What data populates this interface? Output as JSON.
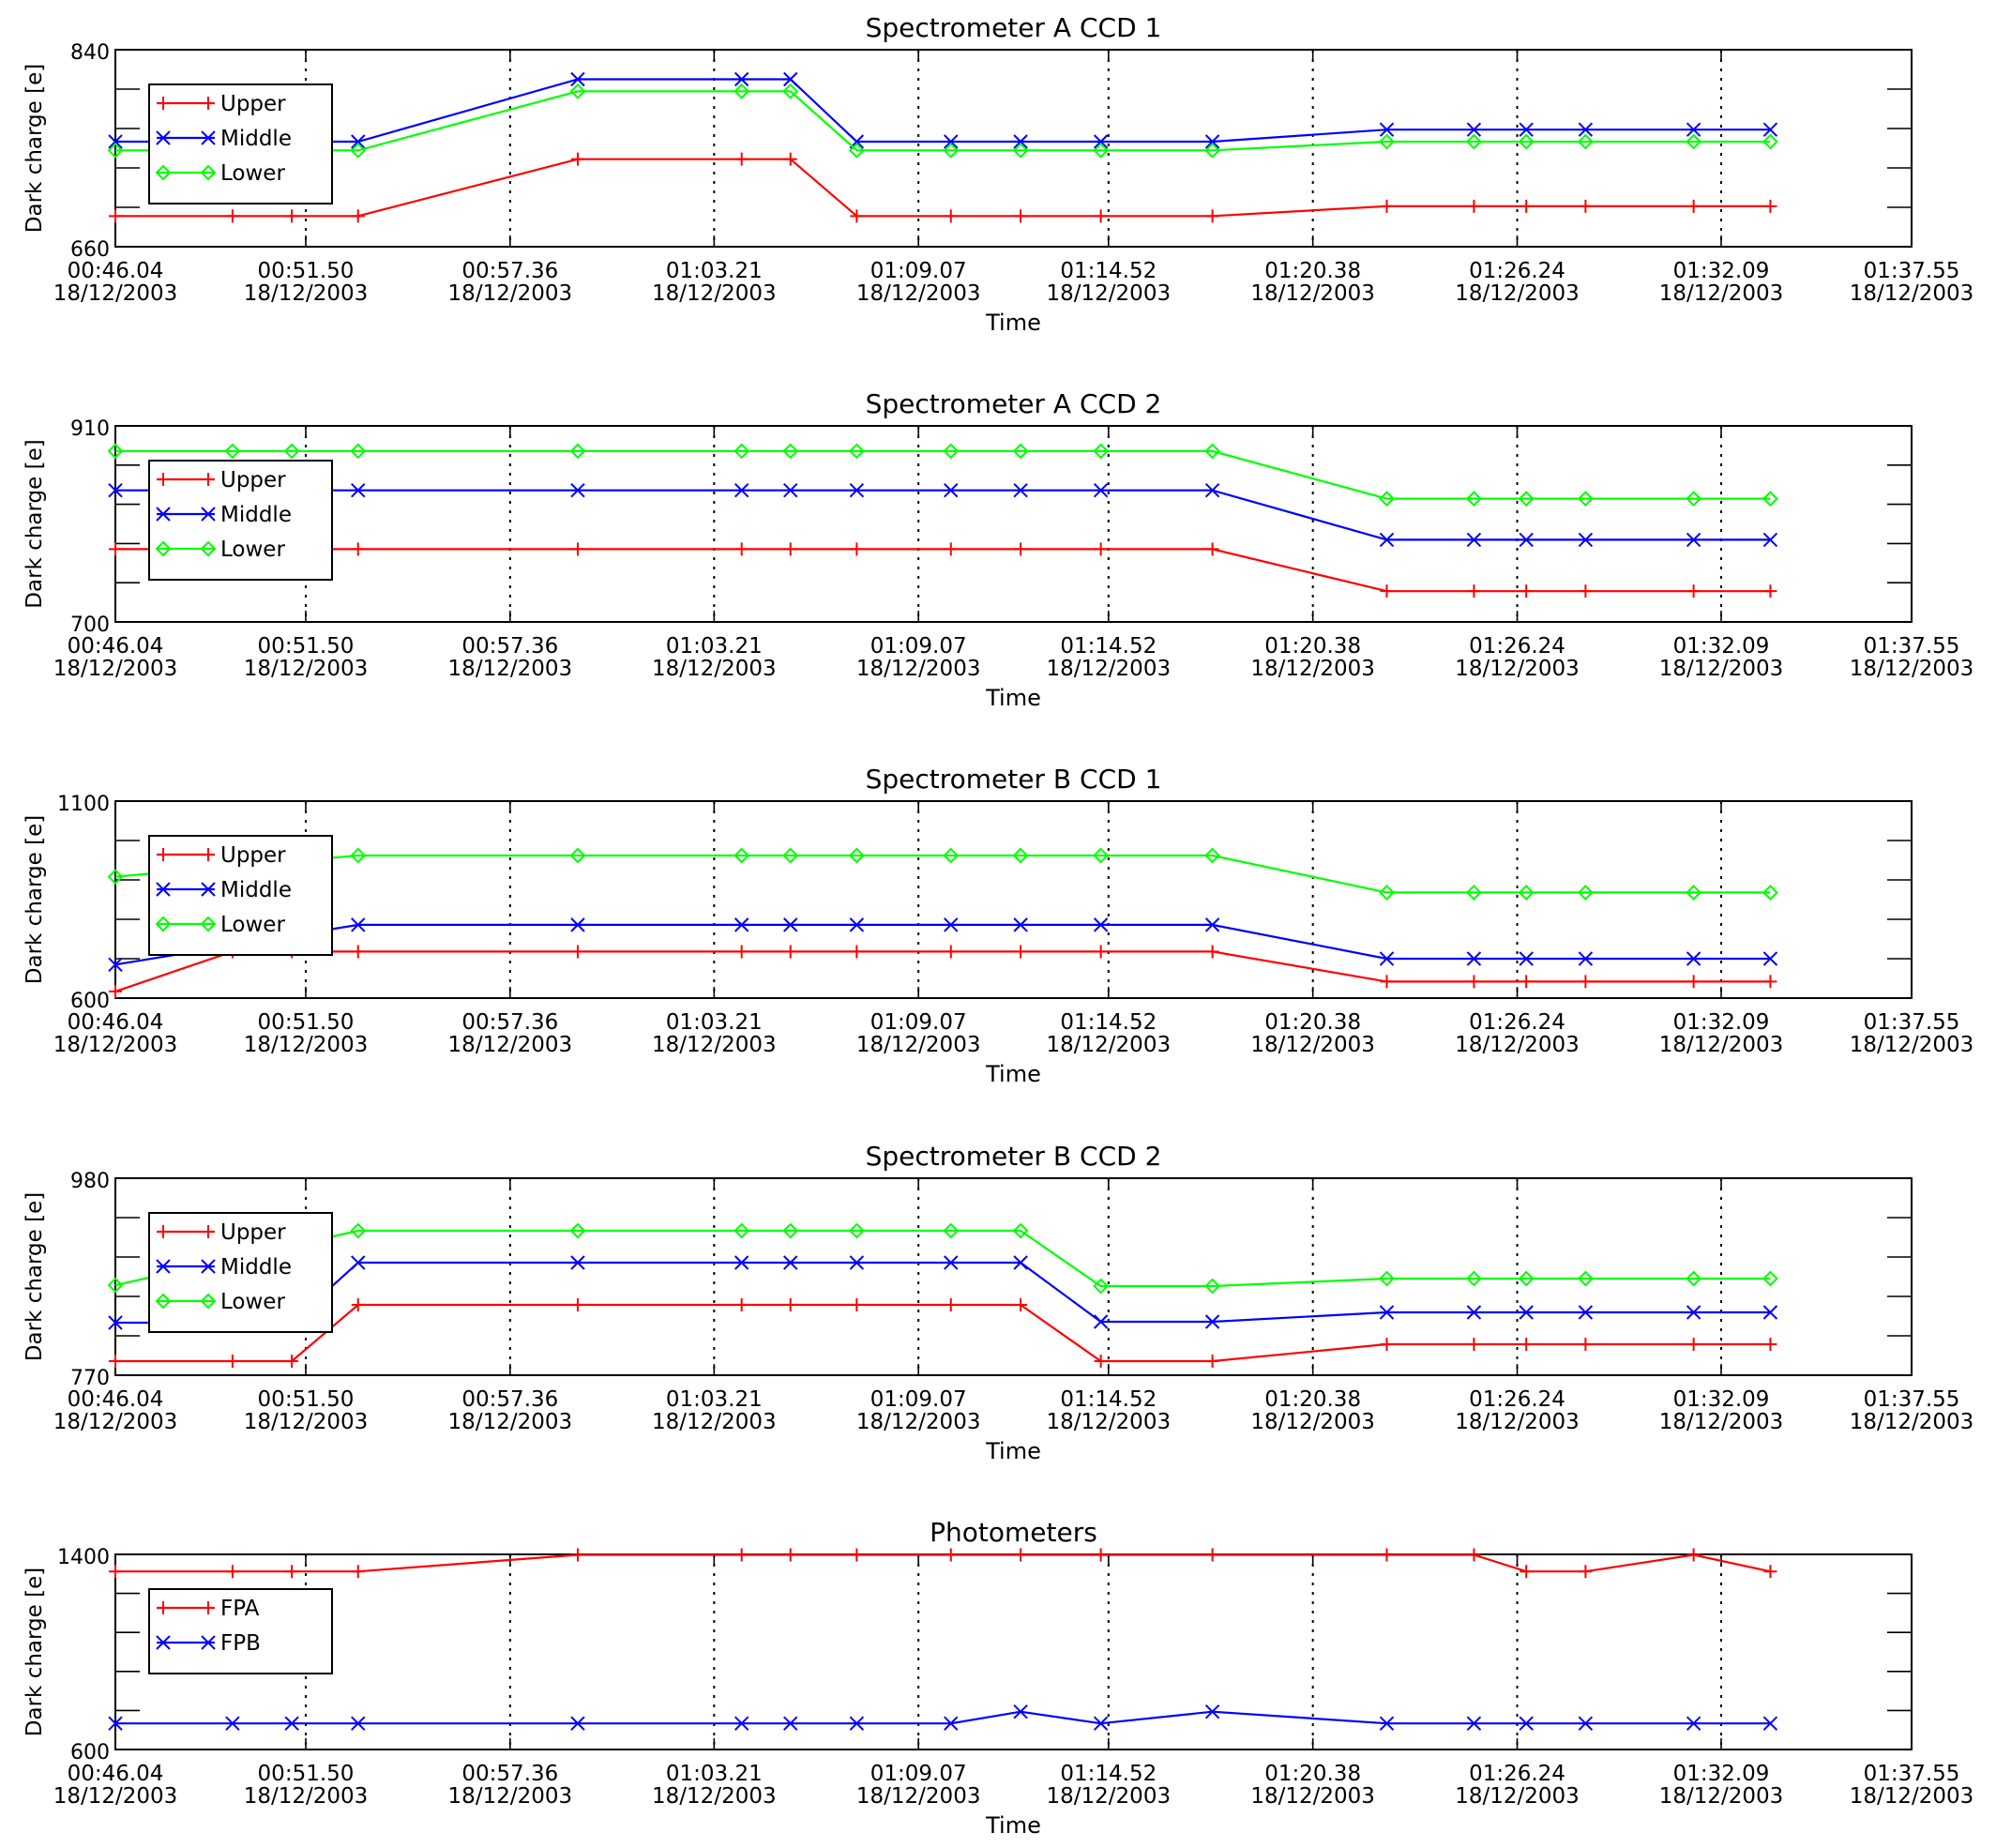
{
  "colors": {
    "upper": "#ff0000",
    "middle": "#0000ff",
    "lower": "#00ff00"
  },
  "x_axis": {
    "label": "Time",
    "ticks": [
      {
        "time": "00:46.04",
        "date": "18/12/2003"
      },
      {
        "time": "00:51.50",
        "date": "18/12/2003"
      },
      {
        "time": "00:57.36",
        "date": "18/12/2003"
      },
      {
        "time": "01:03.21",
        "date": "18/12/2003"
      },
      {
        "time": "01:09.07",
        "date": "18/12/2003"
      },
      {
        "time": "01:14.52",
        "date": "18/12/2003"
      },
      {
        "time": "01:20.38",
        "date": "18/12/2003"
      },
      {
        "time": "01:26.24",
        "date": "18/12/2003"
      },
      {
        "time": "01:32.09",
        "date": "18/12/2003"
      },
      {
        "time": "01:37.55",
        "date": "18/12/2003"
      }
    ]
  },
  "chart_data": [
    {
      "type": "line",
      "title": "Spectrometer A CCD 1",
      "xlabel": "Time",
      "ylabel": "Dark charge [e]",
      "ylim": [
        660,
        840
      ],
      "y_tick_labels": [
        "840",
        "660"
      ],
      "x": [
        "00:46.04",
        "00:49.40",
        "00:51.10",
        "00:53.00",
        "00:59.30",
        "01:04.00",
        "01:05.40",
        "01:07.30",
        "01:10.00",
        "01:12.00",
        "01:14.30",
        "01:17.50",
        "01:22.50",
        "01:25.00",
        "01:26.50",
        "01:28.20",
        "01:31.30",
        "01:33.50"
      ],
      "series": [
        {
          "name": "Upper",
          "marker": "plus",
          "values": [
            688,
            688,
            688,
            688,
            740,
            740,
            740,
            688,
            688,
            688,
            688,
            688,
            697,
            697,
            697,
            697,
            697,
            697
          ]
        },
        {
          "name": "Middle",
          "marker": "x",
          "values": [
            756,
            null,
            null,
            756,
            813,
            813,
            813,
            756,
            756,
            756,
            756,
            756,
            767,
            767,
            767,
            767,
            767,
            767
          ]
        },
        {
          "name": "Lower",
          "marker": "diamond",
          "values": [
            748,
            null,
            null,
            748,
            802,
            802,
            802,
            748,
            748,
            748,
            748,
            748,
            756,
            756,
            756,
            756,
            756,
            756
          ]
        }
      ],
      "legend": "top-left"
    },
    {
      "type": "line",
      "title": "Spectrometer A CCD 2",
      "xlabel": "Time",
      "ylabel": "Dark charge [e]",
      "ylim": [
        700,
        910
      ],
      "y_tick_labels": [
        "910",
        "700"
      ],
      "x": [
        "00:46.04",
        "00:49.40",
        "00:51.10",
        "00:53.00",
        "00:59.30",
        "01:04.00",
        "01:05.40",
        "01:07.30",
        "01:10.00",
        "01:12.00",
        "01:14.30",
        "01:17.50",
        "01:22.50",
        "01:25.00",
        "01:26.50",
        "01:28.20",
        "01:31.30",
        "01:33.50"
      ],
      "series": [
        {
          "name": "Upper",
          "marker": "plus",
          "values": [
            778,
            778,
            778,
            778,
            778,
            778,
            778,
            778,
            778,
            778,
            778,
            778,
            733,
            733,
            733,
            733,
            733,
            733
          ]
        },
        {
          "name": "Middle",
          "marker": "x",
          "values": [
            841,
            null,
            null,
            841,
            841,
            841,
            841,
            841,
            841,
            841,
            841,
            841,
            788,
            788,
            788,
            788,
            788,
            788
          ]
        },
        {
          "name": "Lower",
          "marker": "diamond",
          "values": [
            883,
            883,
            883,
            883,
            883,
            883,
            883,
            883,
            883,
            883,
            883,
            883,
            832,
            832,
            832,
            832,
            832,
            832
          ]
        }
      ],
      "legend": "top-left"
    },
    {
      "type": "line",
      "title": "Spectrometer B CCD 1",
      "xlabel": "Time",
      "ylabel": "Dark charge [e]",
      "ylim": [
        600,
        1100
      ],
      "y_tick_labels": [
        "1100",
        "600"
      ],
      "x": [
        "00:46.04",
        "00:49.40",
        "00:51.10",
        "00:53.00",
        "00:59.30",
        "01:04.00",
        "01:05.40",
        "01:07.30",
        "01:10.00",
        "01:12.00",
        "01:14.30",
        "01:17.50",
        "01:22.50",
        "01:25.00",
        "01:26.50",
        "01:28.20",
        "01:31.30",
        "01:33.50"
      ],
      "series": [
        {
          "name": "Upper",
          "marker": "plus",
          "values": [
            617,
            718,
            718,
            718,
            718,
            718,
            718,
            718,
            718,
            718,
            718,
            718,
            642,
            642,
            642,
            642,
            642,
            642
          ]
        },
        {
          "name": "Middle",
          "marker": "x",
          "values": [
            685,
            null,
            null,
            786,
            786,
            786,
            786,
            786,
            786,
            786,
            786,
            786,
            700,
            700,
            700,
            700,
            700,
            700
          ]
        },
        {
          "name": "Lower",
          "marker": "diamond",
          "values": [
            908,
            null,
            null,
            962,
            962,
            962,
            962,
            962,
            962,
            962,
            962,
            962,
            868,
            868,
            868,
            868,
            868,
            868
          ]
        }
      ],
      "legend": "top-left"
    },
    {
      "type": "line",
      "title": "Spectrometer B CCD 2",
      "xlabel": "Time",
      "ylabel": "Dark charge [e]",
      "ylim": [
        770,
        980
      ],
      "y_tick_labels": [
        "980",
        "770"
      ],
      "x": [
        "00:46.04",
        "00:49.40",
        "00:51.10",
        "00:53.00",
        "00:59.30",
        "01:04.00",
        "01:05.40",
        "01:07.30",
        "01:10.00",
        "01:12.00",
        "01:14.30",
        "01:17.50",
        "01:22.50",
        "01:25.00",
        "01:26.50",
        "01:28.20",
        "01:31.30",
        "01:33.50"
      ],
      "series": [
        {
          "name": "Upper",
          "marker": "plus",
          "values": [
            785,
            785,
            785,
            845,
            845,
            845,
            845,
            845,
            845,
            845,
            785,
            785,
            803,
            803,
            803,
            803,
            803,
            803
          ]
        },
        {
          "name": "Middle",
          "marker": "x",
          "values": [
            826,
            826,
            826,
            890,
            890,
            890,
            890,
            890,
            890,
            890,
            827,
            827,
            837,
            837,
            837,
            837,
            837,
            837
          ]
        },
        {
          "name": "Lower",
          "marker": "diamond",
          "values": [
            866,
            null,
            null,
            924,
            924,
            924,
            924,
            924,
            924,
            924,
            865,
            865,
            873,
            873,
            873,
            873,
            873,
            873
          ]
        }
      ],
      "legend": "top-left"
    },
    {
      "type": "line",
      "title": "Photometers",
      "xlabel": "Time",
      "ylabel": "Dark charge [e]",
      "ylim": [
        600,
        1400
      ],
      "y_tick_labels": [
        "1400",
        "600"
      ],
      "x": [
        "00:46.04",
        "00:49.40",
        "00:51.10",
        "00:53.00",
        "00:59.30",
        "01:04.00",
        "01:05.40",
        "01:07.30",
        "01:10.00",
        "01:12.00",
        "01:14.30",
        "01:17.50",
        "01:22.50",
        "01:25.00",
        "01:26.50",
        "01:28.20",
        "01:31.30",
        "01:33.50"
      ],
      "series": [
        {
          "name": "FPA",
          "marker": "plus",
          "values": [
            1330,
            1330,
            1330,
            1330,
            1398,
            1398,
            1398,
            1398,
            1398,
            1398,
            1398,
            1398,
            1398,
            1398,
            1330,
            1330,
            1398,
            1330
          ]
        },
        {
          "name": "FPB",
          "marker": "x",
          "values": [
            707,
            707,
            707,
            707,
            707,
            707,
            707,
            707,
            707,
            755,
            707,
            755,
            707,
            707,
            707,
            707,
            707,
            707
          ]
        }
      ],
      "legend": "top-left"
    }
  ]
}
